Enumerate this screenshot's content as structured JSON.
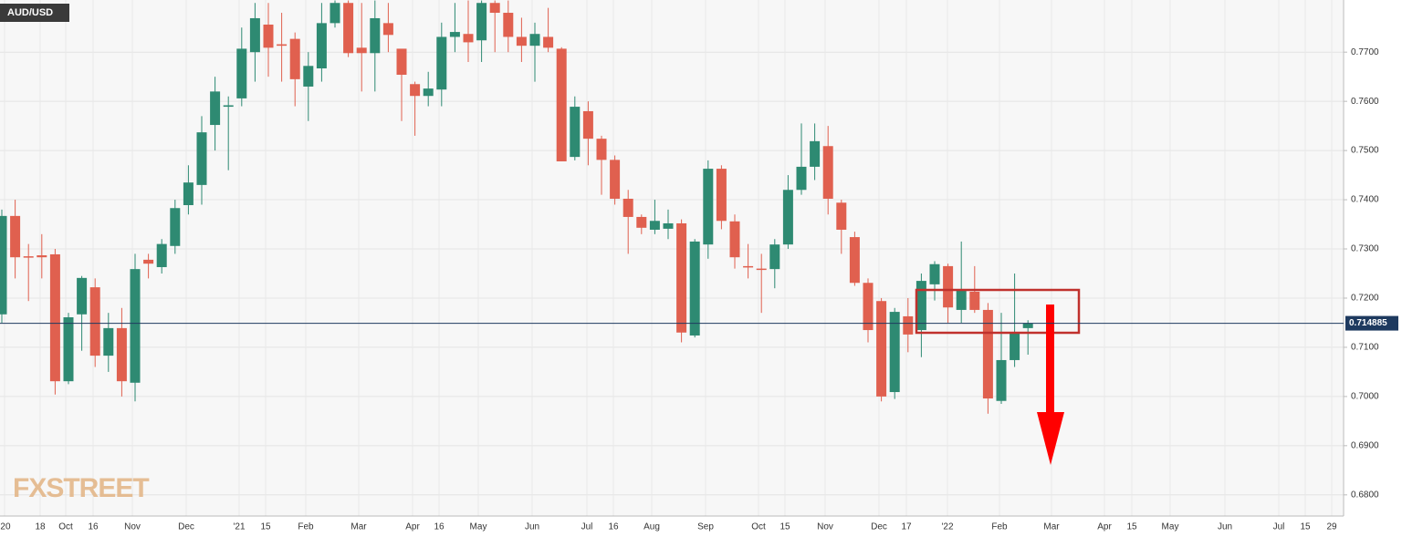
{
  "chart_data": {
    "type": "candlestick",
    "title": "AUD/USD",
    "watermark": "FXSTREET",
    "x_labels": [
      "'20",
      "18",
      "Oct",
      "16",
      "Nov",
      "Dec",
      "'21",
      "15",
      "Feb",
      "Mar",
      "Apr",
      "16",
      "May",
      "Jun",
      "Jul",
      "16",
      "Aug",
      "Sep",
      "Oct",
      "15",
      "Nov",
      "Dec",
      "17",
      "'22",
      "Feb",
      "Mar",
      "Apr",
      "15",
      "May",
      "Jun",
      "Jul",
      "15",
      "29"
    ],
    "open": [
      0.7167,
      0.7367,
      0.7285,
      0.7287,
      0.7289,
      0.7031,
      0.7167,
      0.7222,
      0.7083,
      0.7139,
      0.7028,
      0.7278,
      0.7263,
      0.7306,
      0.7389,
      0.743,
      0.7552,
      0.7589,
      0.7606,
      0.77,
      0.7756,
      0.7716,
      0.7727,
      0.763,
      0.7667,
      0.7759,
      0.78,
      0.7709,
      0.7698,
      0.7759,
      0.7707,
      0.7635,
      0.7611,
      0.7624,
      0.7731,
      0.7737,
      0.7724,
      0.78,
      0.778,
      0.7731,
      0.7713,
      0.7731,
      0.7707,
      0.7487,
      0.758,
      0.7524,
      0.7481,
      0.7402,
      0.7365,
      0.7339,
      0.7341,
      0.7352,
      0.7124,
      0.7309,
      0.7463,
      0.7356,
      0.7265,
      0.726,
      0.7259,
      0.7309,
      0.742,
      0.7467,
      0.7509,
      0.7394,
      0.7324,
      0.7231,
      0.7194,
      0.7009,
      0.7163,
      0.7135,
      0.7228,
      0.7265,
      0.7176,
      0.7213,
      0.7176,
      0.6991,
      0.7074,
      0.7139
    ],
    "high": [
      0.738,
      0.74,
      0.731,
      0.733,
      0.73,
      0.717,
      0.7245,
      0.724,
      0.717,
      0.718,
      0.729,
      0.729,
      0.732,
      0.74,
      0.747,
      0.757,
      0.765,
      0.761,
      0.775,
      0.78,
      0.78,
      0.778,
      0.774,
      0.77,
      0.78,
      0.7805,
      0.7805,
      0.78,
      0.7805,
      0.78,
      0.77,
      0.764,
      0.766,
      0.776,
      0.78,
      0.7805,
      0.7805,
      0.7805,
      0.7805,
      0.777,
      0.776,
      0.779,
      0.771,
      0.761,
      0.76,
      0.753,
      0.749,
      0.742,
      0.737,
      0.74,
      0.738,
      0.736,
      0.732,
      0.748,
      0.747,
      0.737,
      0.731,
      0.729,
      0.732,
      0.745,
      0.7555,
      0.7555,
      0.755,
      0.74,
      0.7335,
      0.724,
      0.72,
      0.718,
      0.72,
      0.725,
      0.7275,
      0.727,
      0.7315,
      0.7265,
      0.719,
      0.717,
      0.725,
      0.7155
    ],
    "low": [
      0.715,
      0.724,
      0.7194,
      0.724,
      0.7004,
      0.7025,
      0.7093,
      0.706,
      0.705,
      0.7,
      0.699,
      0.724,
      0.725,
      0.729,
      0.737,
      0.739,
      0.75,
      0.746,
      0.759,
      0.764,
      0.765,
      0.764,
      0.759,
      0.756,
      0.764,
      0.775,
      0.769,
      0.762,
      0.762,
      0.77,
      0.756,
      0.753,
      0.759,
      0.759,
      0.77,
      0.768,
      0.768,
      0.77,
      0.77,
      0.768,
      0.764,
      0.77,
      0.7478,
      0.748,
      0.747,
      0.741,
      0.739,
      0.729,
      0.733,
      0.733,
      0.732,
      0.711,
      0.712,
      0.728,
      0.734,
      0.726,
      0.724,
      0.717,
      0.722,
      0.73,
      0.741,
      0.744,
      0.737,
      0.729,
      0.7225,
      0.711,
      0.699,
      0.6995,
      0.709,
      0.708,
      0.7195,
      0.715,
      0.715,
      0.717,
      0.6965,
      0.6985,
      0.706,
      0.7085
    ],
    "close": [
      0.7367,
      0.7283,
      0.7283,
      0.7283,
      0.7031,
      0.7161,
      0.7241,
      0.7083,
      0.7139,
      0.7031,
      0.7259,
      0.727,
      0.731,
      0.7383,
      0.7435,
      0.7537,
      0.762,
      0.7592,
      0.7707,
      0.7769,
      0.7709,
      0.7713,
      0.7645,
      0.7672,
      0.7759,
      0.78,
      0.7698,
      0.7698,
      0.7769,
      0.7735,
      0.7654,
      0.7611,
      0.7626,
      0.7731,
      0.7741,
      0.772,
      0.78,
      0.778,
      0.7731,
      0.7713,
      0.7737,
      0.7709,
      0.7478,
      0.7589,
      0.7524,
      0.7481,
      0.7402,
      0.7365,
      0.7343,
      0.7357,
      0.7352,
      0.713,
      0.7315,
      0.7463,
      0.7357,
      0.7283,
      0.7263,
      0.7259,
      0.7309,
      0.742,
      0.7467,
      0.7519,
      0.7402,
      0.7339,
      0.7231,
      0.7135,
      0.7,
      0.7172,
      0.7126,
      0.7235,
      0.7269,
      0.7181,
      0.7217,
      0.7176,
      0.6996,
      0.7074,
      0.713,
      0.7149
    ],
    "up_color": "#2e8a72",
    "down_color": "#e0604f",
    "last_price": 0.714885,
    "ylim": [
      0.6757,
      0.7806
    ],
    "yticks": [
      {
        "value": 0.77,
        "label": "0.7700"
      },
      {
        "value": 0.76,
        "label": "0.7600"
      },
      {
        "value": 0.75,
        "label": "0.7500"
      },
      {
        "value": 0.74,
        "label": "0.7400"
      },
      {
        "value": 0.73,
        "label": "0.7300"
      },
      {
        "value": 0.72,
        "label": "0.7200"
      },
      {
        "value": 0.71,
        "label": "0.7100"
      },
      {
        "value": 0.7,
        "label": "0.7000"
      },
      {
        "value": 0.69,
        "label": "0.6900"
      },
      {
        "value": 0.68,
        "label": "0.6800"
      }
    ],
    "grid": true
  }
}
